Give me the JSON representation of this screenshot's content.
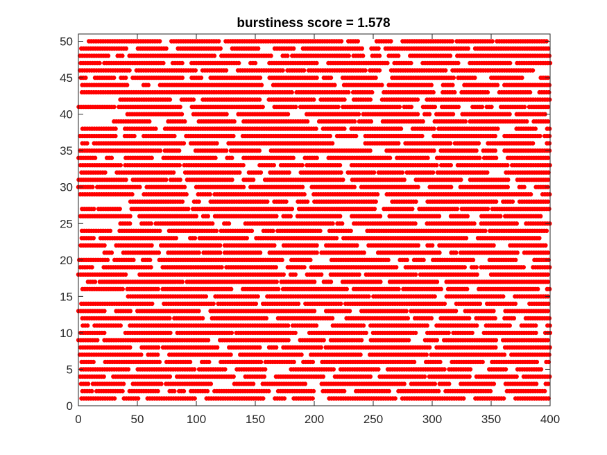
{
  "chart_data": {
    "type": "scatter",
    "title": "burstiness score = 1.578",
    "xlabel": "",
    "ylabel": "",
    "xlim": [
      0,
      400
    ],
    "ylim": [
      0,
      51
    ],
    "xticks": [
      0,
      50,
      100,
      150,
      200,
      250,
      300,
      350,
      400
    ],
    "yticks": [
      0,
      5,
      10,
      15,
      20,
      25,
      30,
      35,
      40,
      45,
      50
    ],
    "grid": false,
    "series": [
      {
        "marker": "filled-circle",
        "color": "#ff0000",
        "row_values": [
          1,
          2,
          3,
          4,
          5,
          6,
          7,
          8,
          9,
          10,
          11,
          12,
          13,
          14,
          15,
          16,
          17,
          18,
          19,
          20,
          21,
          22,
          23,
          24,
          25,
          26,
          27,
          28,
          29,
          30,
          31,
          32,
          33,
          34,
          35,
          36,
          37,
          38,
          39,
          40,
          41,
          42,
          43,
          44,
          45,
          46,
          47,
          48,
          49,
          50
        ],
        "x_step": 2,
        "density": "dense raster of events on each row; x from 0 to 400"
      }
    ]
  }
}
